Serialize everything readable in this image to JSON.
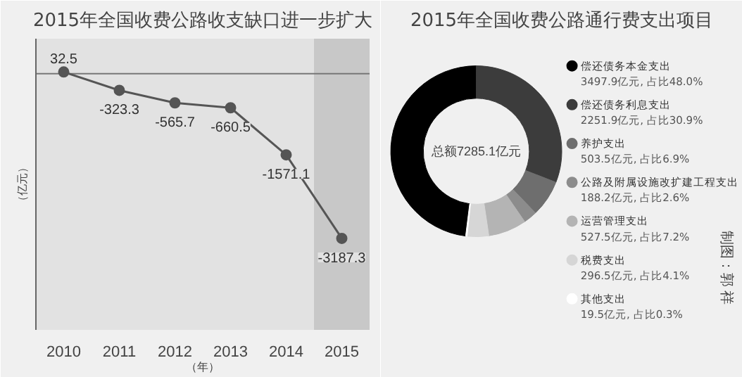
{
  "chart_data": [
    {
      "type": "line",
      "title": "2015年全国收费公路收支缺口进一步扩大",
      "ylabel": "（亿元）",
      "xlabel": "（年）",
      "categories": [
        "2010",
        "2011",
        "2012",
        "2013",
        "2014",
        "2015"
      ],
      "series": [
        {
          "color": "#555555",
          "values": [
            32.5,
            -323.3,
            -565.7,
            -660.5,
            -1571.1,
            -3187.3
          ]
        }
      ],
      "data_labels": true,
      "marker": "circle",
      "tick_labels": "x",
      "ref_lines": [
        {
          "axis": "y",
          "value": 0,
          "color": "#777777"
        }
      ],
      "bands": [
        {
          "axis": "x",
          "from": "2015",
          "to": "2015",
          "color": "#c8c8c8"
        }
      ]
    },
    {
      "type": "donut",
      "title": "2015年全国收费公路通行费支出项目",
      "categories": [
        "偿还债务本金支出",
        "偿还债务利息支出",
        "养护支出",
        "公路及附属设施改扩建工程支出",
        "运营管理支出",
        "税费支出",
        "其他支出"
      ],
      "values": [
        3497.9,
        2251.9,
        503.5,
        188.2,
        527.5,
        296.5,
        19.5
      ],
      "colors": [
        "#000000",
        "#3c3c3c",
        "#6e6e6e",
        "#8c8c8c",
        "#b4b4b4",
        "#d6d6d6",
        "#ffffff"
      ],
      "value_labels": [
        "3497.9亿元, 占比48.0%",
        "2251.9亿元, 占比30.9%",
        "503.5亿元, 占比6.9%",
        "188.2亿元, 占比2.6%",
        "527.5亿元, 占比7.2%",
        "296.5亿元, 占比4.1%",
        "19.5亿元, 占比0.3%"
      ],
      "legend": "right",
      "annotations": [
        "总额7285.1亿元",
        "制图：郭 祥"
      ]
    }
  ]
}
